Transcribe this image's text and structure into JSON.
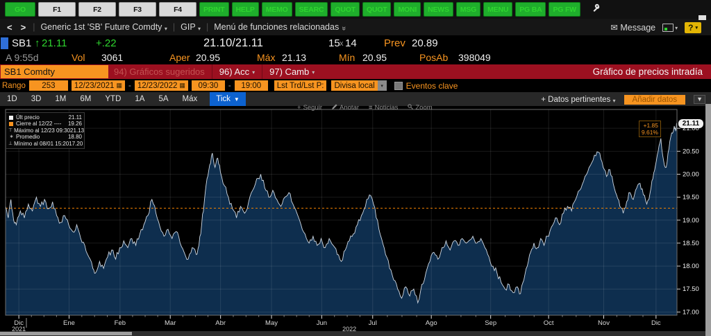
{
  "icons": {
    "caret_down": "▾",
    "caret_down_big": "▼",
    "envelope": "✉",
    "double_chevron": "»",
    "calendar": "▦",
    "back": "<",
    "forward": ">",
    "plus": "+",
    "menu_lines": "≡",
    "legend_high": "⊤",
    "legend_avg": "∗",
    "legend_low": "⊥",
    "up_arrow": "↑"
  },
  "toolbar": {
    "go": "GO",
    "fkeys": [
      "F1",
      "F2",
      "F3",
      "F4"
    ],
    "apps": [
      "PRINT",
      "HELP",
      "MEMO",
      "SEARC",
      "QUOT",
      "QUOT",
      "MONI",
      "NEWS",
      "MSG",
      "MENU",
      "PG BA",
      "PG FW"
    ]
  },
  "navbar": {
    "security_menu": "Generic 1st 'SB' Future Comdty",
    "gip": "GIP",
    "related": "Menú de funciones relacionadas",
    "message": "Message",
    "help": "?"
  },
  "quote": {
    "symbol": "SB1",
    "last": "21.11",
    "change": "+.22",
    "bid_ask": "21.10/21.11",
    "bid_size": "15",
    "x": "x",
    "ask_size": "14",
    "prev_label": "Prev",
    "prev": "20.89",
    "session": "A 9:55d",
    "vol_label": "Vol",
    "volume": "3061",
    "open_label": "Aper",
    "open": "20.95",
    "high_label": "Máx",
    "high": "21.13",
    "low_label": "Mín",
    "low": "20.95",
    "oi_label": "PosAb",
    "open_interest": "398049"
  },
  "titlebar": {
    "security": "SB1 Comdty",
    "suggested": "94) Gráficos sugeridos",
    "acc": "96) Acc",
    "camb": "97) Camb",
    "title": "Gráfico de precios intradía"
  },
  "controls": {
    "range_label": "Rango",
    "range_value": "253",
    "date_from": "12/23/2021",
    "date_to": "12/23/2022",
    "dash": "-",
    "time_from": "09:30",
    "time_to": "19:00",
    "price_type": "Lst Trd/Lst P:",
    "currency": "Divisa local",
    "events": "Eventos clave"
  },
  "periods": [
    "1D",
    "3D",
    "1M",
    "6M",
    "YTD",
    "1A",
    "5A",
    "Máx"
  ],
  "active_period": "Tick",
  "right_actions": {
    "datos": "+ Datos pertinentes",
    "anadir": "Añadir datos"
  },
  "chart_actions": [
    {
      "icon": "plus",
      "label": "Seguir"
    },
    {
      "icon": "pencil",
      "label": "Anotar"
    },
    {
      "icon": "menu_lines",
      "label": "Noticias"
    },
    {
      "icon": "magnifier",
      "label": "Zoom"
    }
  ],
  "legend": {
    "rows": [
      {
        "marker": "square-white",
        "label": "Últ precio",
        "value": "21.11"
      },
      {
        "marker": "square-orange",
        "label": "Cierre al 12/22 ----",
        "value": "19.26"
      },
      {
        "marker": "high",
        "label": "Máximo al 12/23 09:30",
        "value": "21.13"
      },
      {
        "marker": "avg",
        "label": "Promedio",
        "value": "18.80"
      },
      {
        "marker": "low",
        "label": "Mínimo al 08/01 15:20",
        "value": "17.20"
      }
    ]
  },
  "annotation": {
    "change": "+1.85",
    "pct": "9.61%"
  },
  "last_badge": "21.11",
  "colors": {
    "amber": "#f79420",
    "green": "#2fd52f",
    "fill": "#0e2e4e",
    "line": "#cfd9e4",
    "close_line": "#ee7f00",
    "grid": "rgba(255,255,255,0.10)",
    "frame": "#6e6e6e"
  },
  "chart_data": {
    "type": "line",
    "title": "Gráfico de precios intradía — SB1 Comdty (Tick)",
    "ylim": [
      16.93,
      21.41
    ],
    "y_ticks": [
      21.0,
      20.5,
      20.0,
      19.5,
      19.0,
      18.5,
      18.0,
      17.5,
      17.0
    ],
    "close_prev": 19.26,
    "stats": {
      "last": 21.11,
      "prev_close": 19.26,
      "high": 21.13,
      "avg": 18.8,
      "low": 17.2
    },
    "months": [
      [
        "Dic",
        0.0198
      ],
      [
        "Ene",
        0.0946
      ],
      [
        "Feb",
        0.1705
      ],
      [
        "Mar",
        0.2453
      ],
      [
        "Abr",
        0.3202
      ],
      [
        "May",
        0.3961
      ],
      [
        "Jun",
        0.4709
      ],
      [
        "Jul",
        0.5468
      ],
      [
        "Ago",
        0.6341
      ],
      [
        "Sep",
        0.7225
      ],
      [
        "Oct",
        0.8088
      ],
      [
        "Nov",
        0.8909
      ],
      [
        "Dic",
        0.9688
      ]
    ],
    "year_labels": [
      [
        "2021",
        0.0198
      ],
      [
        "2022",
        0.512
      ]
    ],
    "series_name": "SB1 Comdty Últ precio",
    "series_anchors": [
      [
        0.0,
        19.3
      ],
      [
        0.004,
        19.05
      ],
      [
        0.008,
        19.45
      ],
      [
        0.012,
        19.0
      ],
      [
        0.016,
        18.9
      ],
      [
        0.022,
        19.2
      ],
      [
        0.028,
        19.05
      ],
      [
        0.034,
        19.35
      ],
      [
        0.04,
        19.2
      ],
      [
        0.046,
        19.5
      ],
      [
        0.052,
        19.3
      ],
      [
        0.058,
        19.45
      ],
      [
        0.064,
        19.25
      ],
      [
        0.07,
        19.4
      ],
      [
        0.076,
        19.1
      ],
      [
        0.082,
        18.95
      ],
      [
        0.088,
        19.1
      ],
      [
        0.094,
        18.9
      ],
      [
        0.1,
        18.75
      ],
      [
        0.106,
        18.9
      ],
      [
        0.112,
        18.6
      ],
      [
        0.118,
        18.45
      ],
      [
        0.124,
        18.2
      ],
      [
        0.13,
        17.95
      ],
      [
        0.134,
        17.85
      ],
      [
        0.14,
        18.1
      ],
      [
        0.146,
        17.95
      ],
      [
        0.152,
        18.2
      ],
      [
        0.158,
        18.35
      ],
      [
        0.164,
        18.15
      ],
      [
        0.17,
        18.4
      ],
      [
        0.176,
        18.55
      ],
      [
        0.182,
        18.4
      ],
      [
        0.188,
        18.6
      ],
      [
        0.194,
        18.45
      ],
      [
        0.2,
        18.7
      ],
      [
        0.206,
        18.9
      ],
      [
        0.212,
        19.1
      ],
      [
        0.218,
        19.45
      ],
      [
        0.224,
        19.15
      ],
      [
        0.23,
        18.85
      ],
      [
        0.236,
        18.65
      ],
      [
        0.242,
        18.8
      ],
      [
        0.248,
        18.6
      ],
      [
        0.254,
        18.75
      ],
      [
        0.26,
        18.5
      ],
      [
        0.266,
        18.3
      ],
      [
        0.272,
        18.15
      ],
      [
        0.278,
        18.4
      ],
      [
        0.284,
        18.25
      ],
      [
        0.288,
        18.45
      ],
      [
        0.292,
        18.9
      ],
      [
        0.296,
        19.4
      ],
      [
        0.3,
        19.9
      ],
      [
        0.304,
        20.2
      ],
      [
        0.308,
        20.46
      ],
      [
        0.312,
        20.15
      ],
      [
        0.316,
        20.35
      ],
      [
        0.32,
        20.05
      ],
      [
        0.326,
        19.75
      ],
      [
        0.332,
        19.5
      ],
      [
        0.338,
        19.25
      ],
      [
        0.344,
        19.05
      ],
      [
        0.35,
        19.3
      ],
      [
        0.356,
        19.15
      ],
      [
        0.362,
        19.4
      ],
      [
        0.368,
        19.65
      ],
      [
        0.374,
        19.9
      ],
      [
        0.38,
        20.0
      ],
      [
        0.386,
        19.7
      ],
      [
        0.392,
        19.5
      ],
      [
        0.398,
        19.65
      ],
      [
        0.404,
        19.45
      ],
      [
        0.41,
        19.3
      ],
      [
        0.416,
        19.5
      ],
      [
        0.422,
        19.6
      ],
      [
        0.428,
        19.35
      ],
      [
        0.434,
        19.15
      ],
      [
        0.44,
        18.9
      ],
      [
        0.446,
        18.7
      ],
      [
        0.452,
        18.5
      ],
      [
        0.458,
        18.65
      ],
      [
        0.464,
        18.45
      ],
      [
        0.47,
        18.6
      ],
      [
        0.476,
        18.4
      ],
      [
        0.482,
        18.6
      ],
      [
        0.488,
        18.45
      ],
      [
        0.494,
        18.25
      ],
      [
        0.5,
        18.1
      ],
      [
        0.506,
        18.35
      ],
      [
        0.512,
        18.55
      ],
      [
        0.518,
        18.7
      ],
      [
        0.524,
        18.9
      ],
      [
        0.53,
        19.1
      ],
      [
        0.536,
        19.3
      ],
      [
        0.542,
        19.55
      ],
      [
        0.548,
        19.35
      ],
      [
        0.554,
        19.0
      ],
      [
        0.56,
        18.6
      ],
      [
        0.566,
        18.25
      ],
      [
        0.572,
        17.95
      ],
      [
        0.578,
        17.7
      ],
      [
        0.584,
        17.5
      ],
      [
        0.59,
        17.3
      ],
      [
        0.596,
        17.55
      ],
      [
        0.602,
        17.35
      ],
      [
        0.608,
        17.5
      ],
      [
        0.614,
        17.2
      ],
      [
        0.62,
        17.6
      ],
      [
        0.626,
        17.85
      ],
      [
        0.632,
        18.1
      ],
      [
        0.638,
        18.3
      ],
      [
        0.644,
        18.15
      ],
      [
        0.65,
        18.4
      ],
      [
        0.656,
        18.55
      ],
      [
        0.662,
        18.35
      ],
      [
        0.668,
        18.55
      ],
      [
        0.674,
        18.45
      ],
      [
        0.68,
        18.6
      ],
      [
        0.686,
        18.5
      ],
      [
        0.69,
        18.55
      ],
      [
        0.696,
        18.65
      ],
      [
        0.702,
        18.5
      ],
      [
        0.708,
        18.6
      ],
      [
        0.714,
        18.4
      ],
      [
        0.72,
        18.2
      ],
      [
        0.726,
        18.0
      ],
      [
        0.732,
        17.85
      ],
      [
        0.738,
        17.65
      ],
      [
        0.744,
        17.5
      ],
      [
        0.75,
        17.6
      ],
      [
        0.756,
        17.42
      ],
      [
        0.762,
        17.55
      ],
      [
        0.767,
        17.4
      ],
      [
        0.772,
        17.7
      ],
      [
        0.777,
        18.0
      ],
      [
        0.782,
        18.3
      ],
      [
        0.787,
        18.5
      ],
      [
        0.792,
        18.4
      ],
      [
        0.797,
        18.6
      ],
      [
        0.802,
        18.45
      ],
      [
        0.807,
        18.65
      ],
      [
        0.813,
        18.85
      ],
      [
        0.819,
        19.05
      ],
      [
        0.825,
        18.9
      ],
      [
        0.831,
        19.15
      ],
      [
        0.837,
        19.3
      ],
      [
        0.843,
        19.2
      ],
      [
        0.849,
        19.45
      ],
      [
        0.855,
        19.65
      ],
      [
        0.861,
        19.85
      ],
      [
        0.867,
        20.05
      ],
      [
        0.873,
        20.25
      ],
      [
        0.879,
        20.4
      ],
      [
        0.885,
        20.46
      ],
      [
        0.89,
        20.15
      ],
      [
        0.895,
        19.95
      ],
      [
        0.9,
        20.1
      ],
      [
        0.905,
        19.8
      ],
      [
        0.91,
        19.55
      ],
      [
        0.915,
        19.3
      ],
      [
        0.92,
        19.15
      ],
      [
        0.925,
        19.4
      ],
      [
        0.93,
        19.6
      ],
      [
        0.935,
        19.45
      ],
      [
        0.94,
        19.7
      ],
      [
        0.945,
        19.8
      ],
      [
        0.95,
        19.55
      ],
      [
        0.955,
        19.35
      ],
      [
        0.96,
        19.6
      ],
      [
        0.964,
        19.9
      ],
      [
        0.968,
        20.2
      ],
      [
        0.972,
        20.5
      ],
      [
        0.976,
        20.78
      ],
      [
        0.98,
        20.3
      ],
      [
        0.984,
        20.15
      ],
      [
        0.988,
        20.55
      ],
      [
        0.992,
        20.9
      ],
      [
        0.996,
        21.05
      ],
      [
        0.998,
        20.95
      ],
      [
        1.0,
        21.11
      ]
    ]
  }
}
